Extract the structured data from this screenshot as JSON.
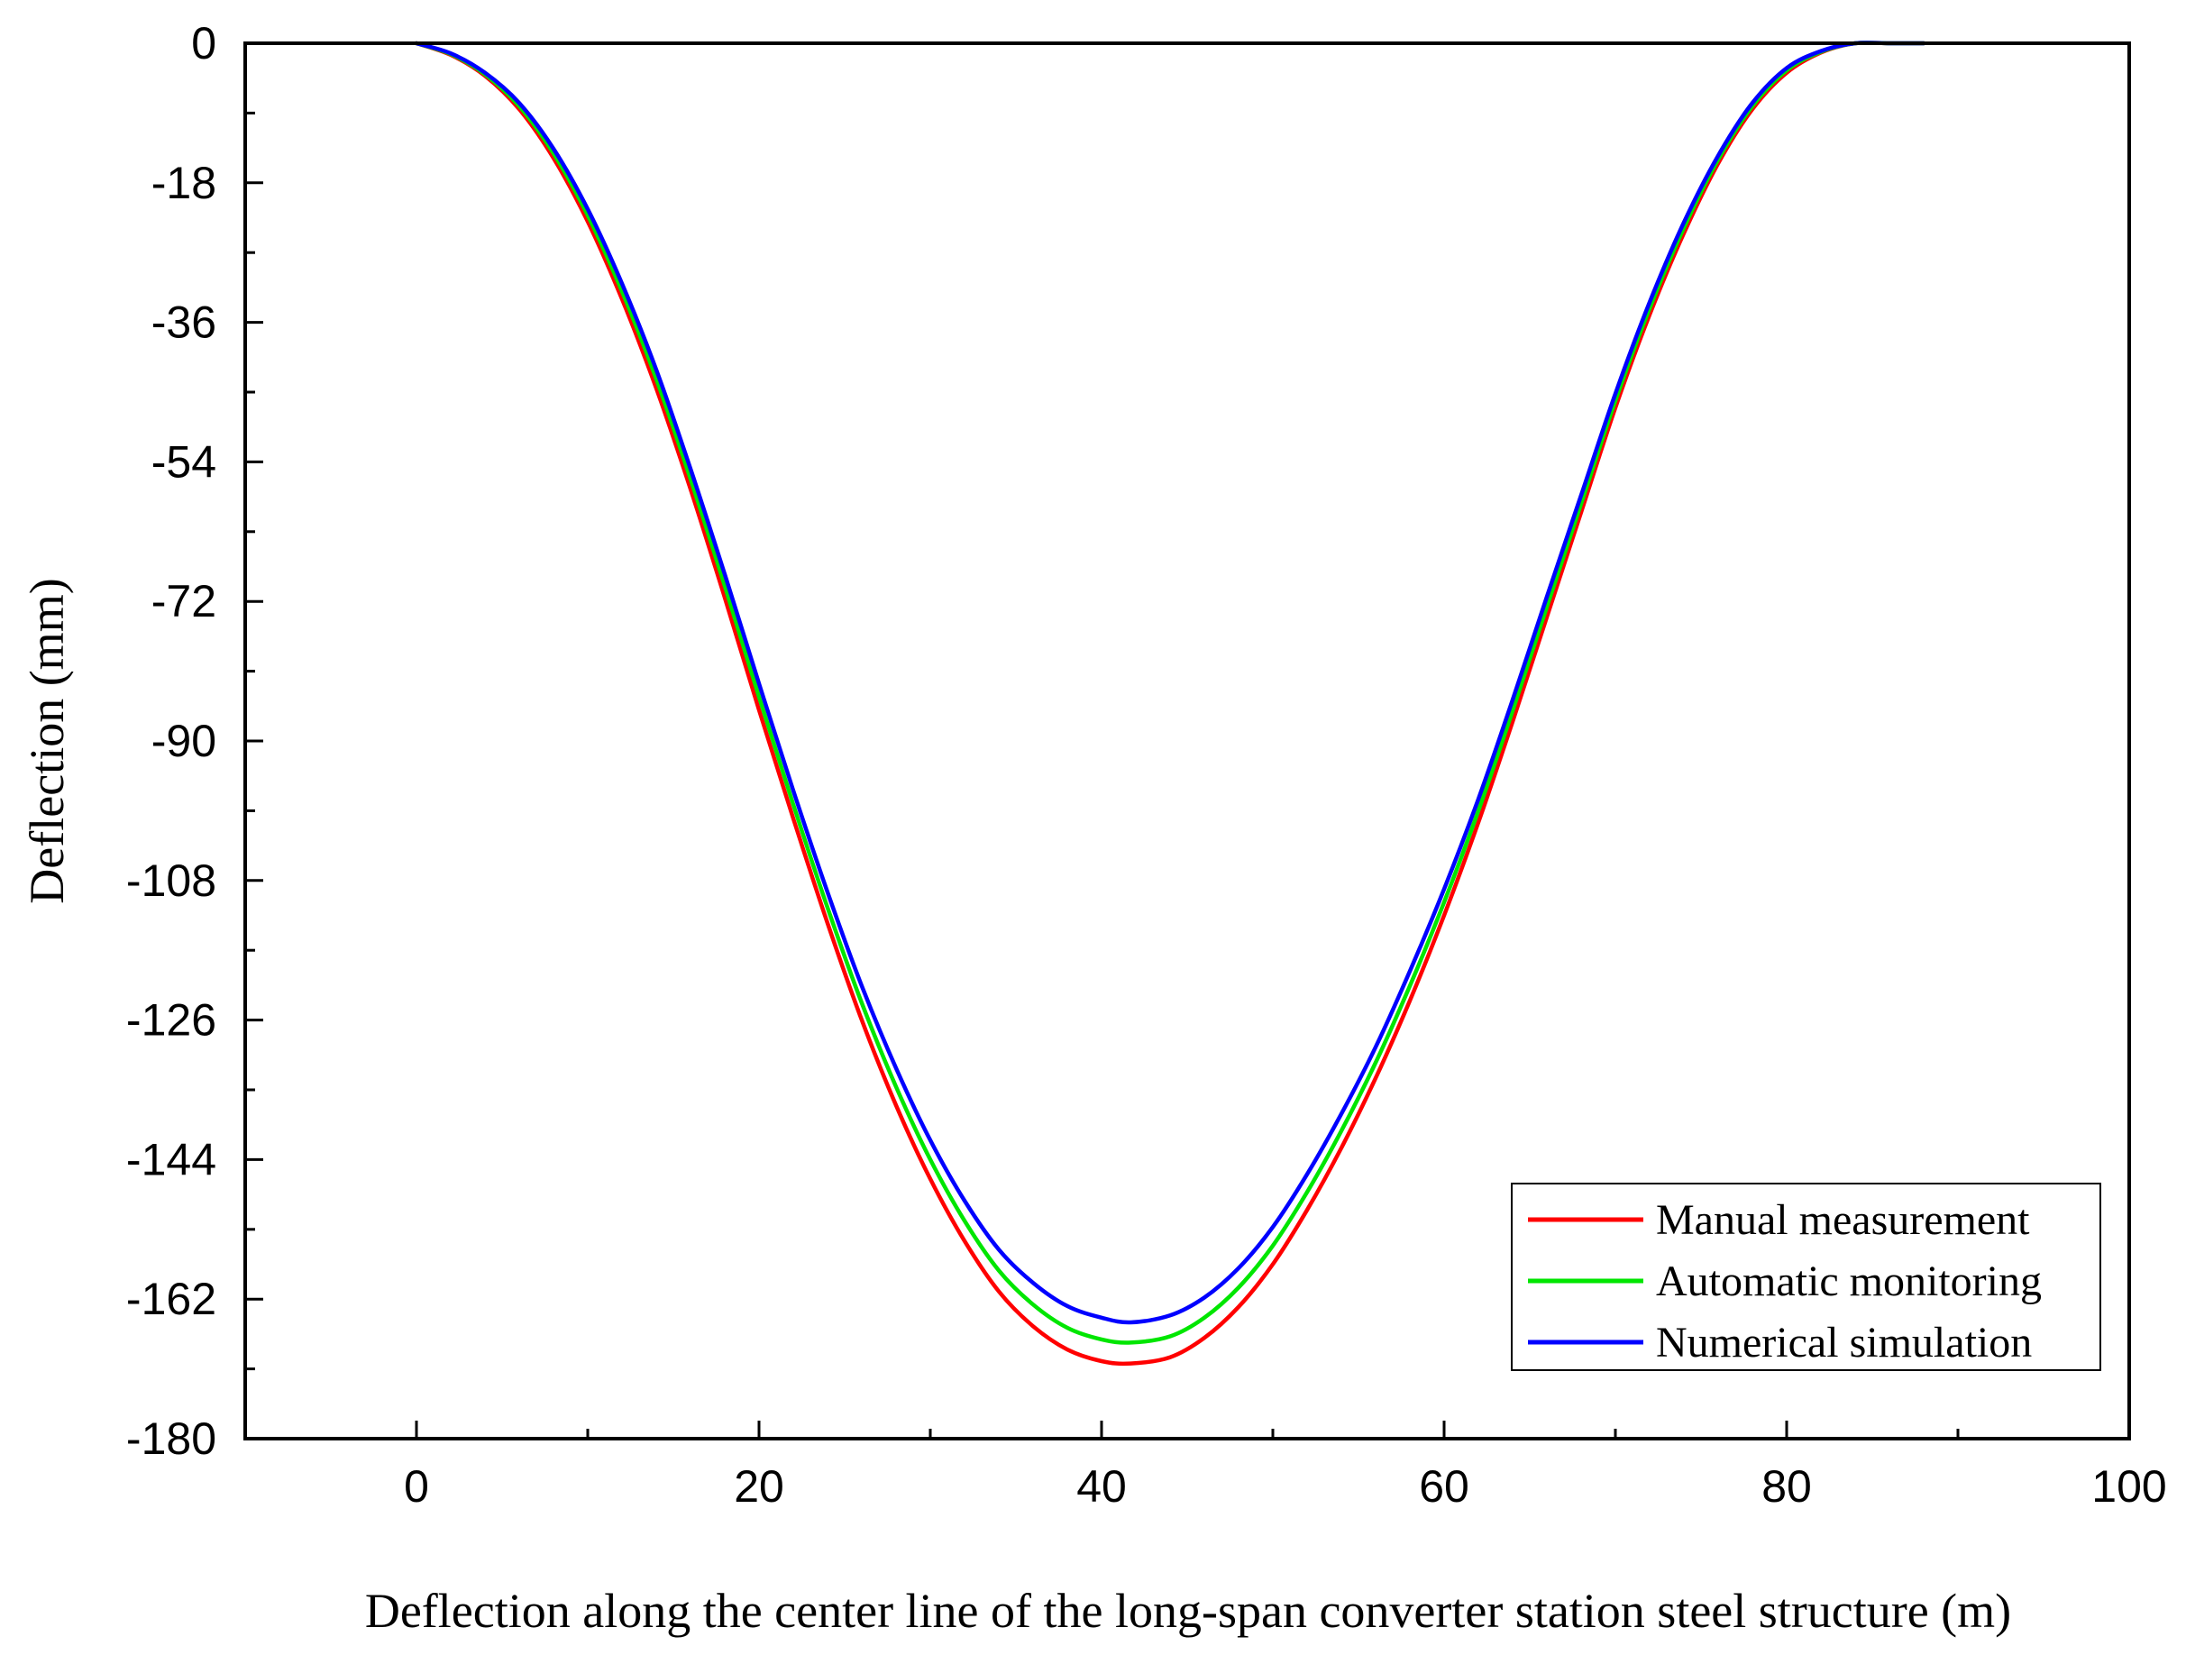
{
  "chart_data": {
    "type": "line",
    "title": "",
    "xlabel": "Deflection along the center line of the long-span converter station steel structure (m)",
    "ylabel": "Deflection (mm)",
    "xlim": [
      -10,
      100
    ],
    "ylim": [
      -180,
      0
    ],
    "x_ticks": [
      0,
      20,
      40,
      60,
      80,
      100
    ],
    "x_tick_labels": [
      "0",
      "20",
      "40",
      "60",
      "80",
      "100"
    ],
    "y_ticks": [
      0,
      -18,
      -36,
      -54,
      -72,
      -90,
      -108,
      -126,
      -144,
      -162,
      -180
    ],
    "y_tick_labels": [
      "0",
      "-18",
      "-36",
      "-54",
      "-72",
      "-90",
      "-108",
      "-126",
      "-144",
      "-162",
      "-180"
    ],
    "grid": false,
    "legend_position": "bottom-right",
    "series": [
      {
        "name": "Manual measurement",
        "color": "#ff0000",
        "x": [
          0,
          2,
          4,
          6,
          8,
          10,
          12,
          14,
          16,
          18,
          20,
          22,
          24,
          26,
          28,
          30,
          32,
          34,
          36,
          38,
          40,
          41.7,
          44,
          46,
          48,
          50,
          52,
          54,
          56,
          58,
          60,
          62,
          64,
          66,
          68,
          70,
          72,
          74,
          76,
          78,
          80,
          82,
          84,
          86,
          88
        ],
        "y": [
          0,
          -1.5,
          -4.2,
          -8.5,
          -14.8,
          -23,
          -33,
          -44.5,
          -57.5,
          -71.5,
          -86,
          -100,
          -113.5,
          -126,
          -137,
          -146.5,
          -154.5,
          -161,
          -165.5,
          -168.5,
          -170,
          -170.3,
          -169.5,
          -167,
          -163,
          -157.5,
          -150.5,
          -142.5,
          -133.5,
          -123.5,
          -112.5,
          -100.5,
          -87.5,
          -74,
          -60.5,
          -47,
          -35,
          -24.5,
          -15.5,
          -8.5,
          -3.8,
          -1.2,
          0,
          0,
          0
        ]
      },
      {
        "name": "Automatic monitoring",
        "color": "#00e600",
        "x": [
          0,
          2,
          4,
          6,
          8,
          10,
          12,
          14,
          16,
          18,
          20,
          22,
          24,
          26,
          28,
          30,
          32,
          34,
          36,
          38,
          40,
          41.7,
          44,
          46,
          48,
          50,
          52,
          54,
          56,
          58,
          60,
          62,
          64,
          66,
          68,
          70,
          72,
          74,
          76,
          78,
          80,
          82,
          84,
          86,
          88
        ],
        "y": [
          0,
          -1.4,
          -4.0,
          -8.1,
          -14.2,
          -22.2,
          -32,
          -43.3,
          -56.2,
          -70,
          -84.3,
          -98.2,
          -111.5,
          -123.8,
          -134.6,
          -144,
          -151.9,
          -158.3,
          -162.7,
          -165.7,
          -167.2,
          -167.6,
          -166.8,
          -164.4,
          -160.5,
          -155.1,
          -148.2,
          -140.3,
          -131.5,
          -121.6,
          -110.8,
          -99,
          -86.1,
          -72.7,
          -59.4,
          -46.1,
          -34.2,
          -23.8,
          -15,
          -8.1,
          -3.5,
          -1.1,
          0,
          0,
          0
        ]
      },
      {
        "name": "Numerical simulation",
        "color": "#0000ff",
        "x": [
          0,
          2,
          4,
          6,
          8,
          10,
          12,
          14,
          16,
          18,
          20,
          22,
          24,
          26,
          28,
          30,
          32,
          34,
          36,
          38,
          40,
          41.7,
          44,
          46,
          48,
          50,
          52,
          54,
          56,
          58,
          60,
          62,
          64,
          66,
          68,
          70,
          72,
          74,
          76,
          78,
          80,
          82,
          84,
          86,
          88
        ],
        "y": [
          0,
          -1.3,
          -3.8,
          -7.7,
          -13.6,
          -21.4,
          -31,
          -42.1,
          -54.9,
          -68.5,
          -82.6,
          -96.4,
          -109.5,
          -121.6,
          -132.2,
          -141.5,
          -149.3,
          -155.6,
          -159.9,
          -162.9,
          -164.4,
          -165,
          -164.1,
          -161.8,
          -158,
          -152.7,
          -145.9,
          -138.1,
          -129.5,
          -119.7,
          -109.1,
          -97.5,
          -84.7,
          -71.4,
          -58.3,
          -45.2,
          -33.4,
          -23.1,
          -14.5,
          -7.7,
          -3.2,
          -1.0,
          0,
          0,
          0
        ]
      }
    ]
  }
}
